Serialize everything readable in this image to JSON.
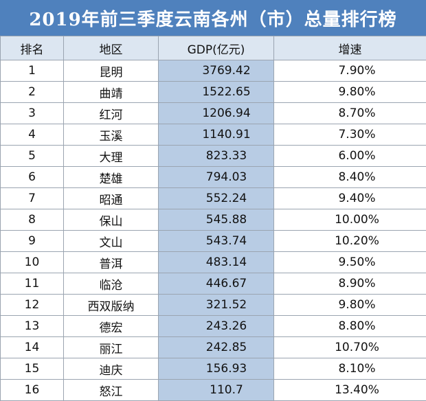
{
  "title": "2019年前三季度云南各州（市）总量排行榜",
  "headers": {
    "rank": "排名",
    "region": "地区",
    "gdp": "GDP(亿元)",
    "growth": "增速"
  },
  "rows": [
    {
      "rank": "1",
      "region": "昆明",
      "gdp": "3769.42",
      "growth": "7.90%"
    },
    {
      "rank": "2",
      "region": "曲靖",
      "gdp": "1522.65",
      "growth": "9.80%"
    },
    {
      "rank": "3",
      "region": "红河",
      "gdp": "1206.94",
      "growth": "8.70%"
    },
    {
      "rank": "4",
      "region": "玉溪",
      "gdp": "1140.91",
      "growth": "7.30%"
    },
    {
      "rank": "5",
      "region": "大理",
      "gdp": "823.33",
      "growth": "6.00%"
    },
    {
      "rank": "6",
      "region": "楚雄",
      "gdp": "794.03",
      "growth": "8.40%"
    },
    {
      "rank": "7",
      "region": "昭通",
      "gdp": "552.24",
      "growth": "9.40%"
    },
    {
      "rank": "8",
      "region": "保山",
      "gdp": "545.88",
      "growth": "10.00%"
    },
    {
      "rank": "9",
      "region": "文山",
      "gdp": "543.74",
      "growth": "10.20%"
    },
    {
      "rank": "10",
      "region": "普洱",
      "gdp": "483.14",
      "growth": "9.50%"
    },
    {
      "rank": "11",
      "region": "临沧",
      "gdp": "446.67",
      "growth": "8.90%"
    },
    {
      "rank": "12",
      "region": "西双版纳",
      "gdp": "321.52",
      "growth": "9.80%"
    },
    {
      "rank": "13",
      "region": "德宏",
      "gdp": "243.26",
      "growth": "8.80%"
    },
    {
      "rank": "14",
      "region": "丽江",
      "gdp": "242.85",
      "growth": "10.70%"
    },
    {
      "rank": "15",
      "region": "迪庆",
      "gdp": "156.93",
      "growth": "8.10%"
    },
    {
      "rank": "16",
      "region": "怒江",
      "gdp": "110.7",
      "growth": "13.40%"
    }
  ],
  "colors": {
    "title_bg": "#4f81bd",
    "header_bg": "#dce6f1",
    "gdp_col_bg": "#b8cce4"
  }
}
